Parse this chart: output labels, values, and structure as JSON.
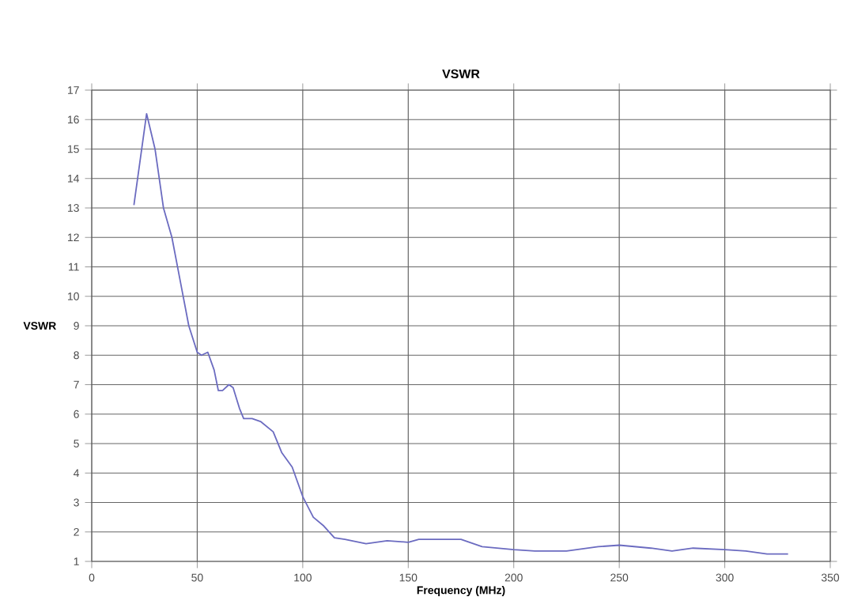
{
  "chart_data": {
    "type": "line",
    "title": "VSWR",
    "xlabel": "Frequency (MHz)",
    "ylabel": "VSWR",
    "xlim": [
      0,
      350
    ],
    "xticks": [
      0,
      50,
      100,
      150,
      200,
      250,
      300,
      350
    ],
    "ylim": [
      1,
      17
    ],
    "yticks": [
      1,
      2,
      3,
      4,
      5,
      6,
      7,
      8,
      9,
      10,
      11,
      12,
      13,
      14,
      15,
      16,
      17
    ],
    "grid": true,
    "marker": "none",
    "line_style": "solid",
    "series": [
      {
        "color": "#6b6bc0",
        "x": [
          20,
          26,
          30,
          34,
          38,
          42,
          46,
          50,
          52,
          55,
          58,
          60,
          62,
          65,
          67,
          70,
          72,
          76,
          80,
          86,
          90,
          95,
          100,
          105,
          110,
          115,
          120,
          130,
          140,
          150,
          155,
          175,
          185,
          200,
          210,
          225,
          240,
          250,
          265,
          275,
          285,
          300,
          310,
          320,
          330
        ],
        "values": [
          13.1,
          16.2,
          15,
          13,
          12,
          10.5,
          9,
          8.1,
          8,
          8.1,
          7.5,
          6.8,
          6.8,
          7.0,
          6.9,
          6.2,
          5.85,
          5.85,
          5.75,
          5.4,
          4.7,
          4.2,
          3.2,
          2.5,
          2.2,
          1.8,
          1.75,
          1.6,
          1.7,
          1.65,
          1.75,
          1.75,
          1.5,
          1.4,
          1.35,
          1.35,
          1.5,
          1.55,
          1.45,
          1.35,
          1.45,
          1.4,
          1.35,
          1.25,
          1.25
        ]
      }
    ]
  }
}
